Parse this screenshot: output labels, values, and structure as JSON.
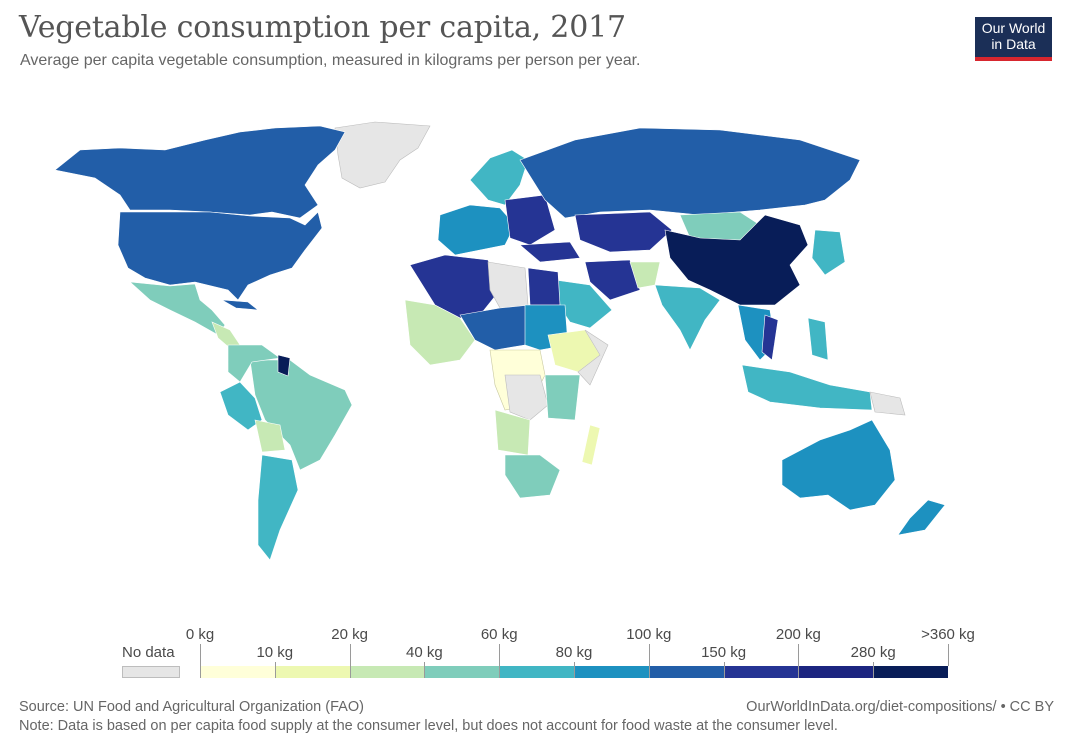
{
  "header": {
    "title": "Vegetable consumption per capita, 2017",
    "subtitle": "Average per capita vegetable consumption, measured in kilograms per person per year."
  },
  "logo": {
    "line1": "Our World",
    "line2": "in Data"
  },
  "legend": {
    "no_data_label": "No data",
    "no_data_color": "#e6e6e6",
    "bins": [
      {
        "label": "0 kg",
        "color": "#ffffd9"
      },
      {
        "label": "10 kg",
        "color": "#edf8b1"
      },
      {
        "label": "20 kg",
        "color": "#c7e9b4"
      },
      {
        "label": "40 kg",
        "color": "#7fcdbb"
      },
      {
        "label": "60 kg",
        "color": "#41b6c4"
      },
      {
        "label": "80 kg",
        "color": "#1d91c0"
      },
      {
        "label": "100 kg",
        "color": "#225ea8"
      },
      {
        "label": "150 kg",
        "color": "#253494"
      },
      {
        "label": "200 kg",
        "color": "#1c2580"
      },
      {
        "label": "280 kg",
        "color": "#081d58"
      }
    ],
    "max_label": ">360 kg"
  },
  "footer": {
    "source": "Source: UN Food and Agricultural Organization (FAO)",
    "url": "OurWorldInData.org/diet-compositions/ • CC BY",
    "note": "Note: Data is based on per capita food supply at the consumer level, but does not account for food waste at the consumer level."
  }
}
